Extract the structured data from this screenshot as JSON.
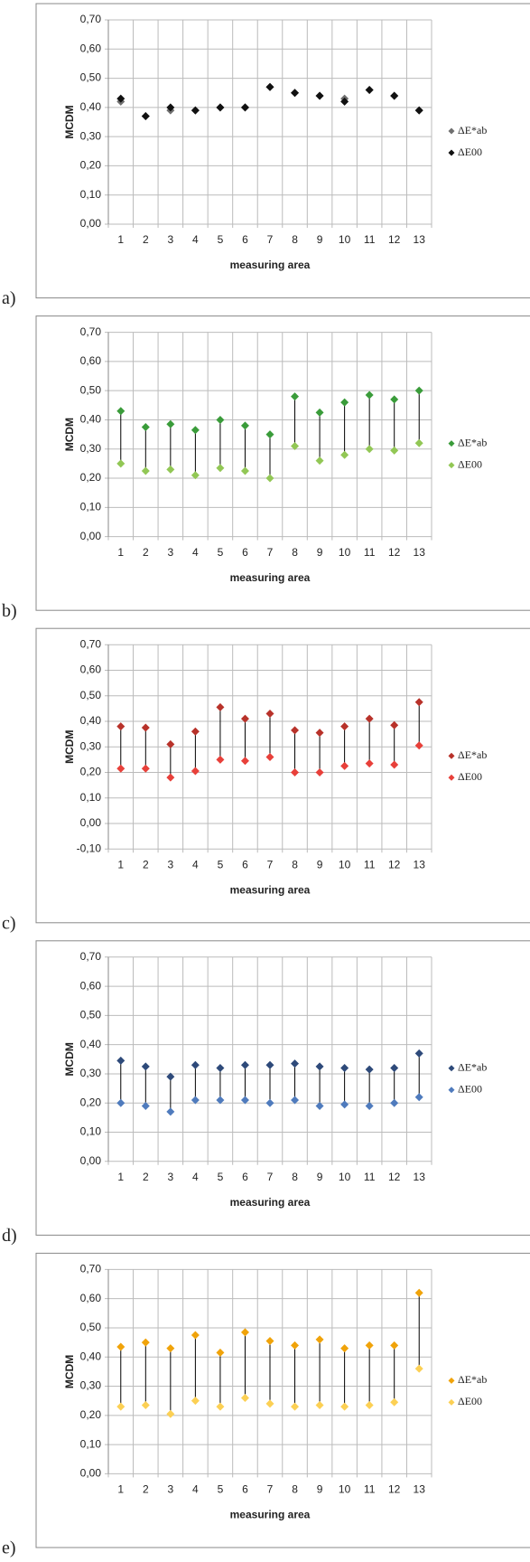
{
  "chart_data": [
    {
      "type": "dot",
      "label": "a)",
      "xlabel": "measuring area",
      "ylabel": "MCDM",
      "categories": [
        "1",
        "2",
        "3",
        "4",
        "5",
        "6",
        "7",
        "8",
        "9",
        "10",
        "11",
        "12",
        "13"
      ],
      "ylim": [
        0,
        0.7
      ],
      "yticks": [
        {
          "value": 0,
          "label": "0,00"
        },
        {
          "value": 0.1,
          "label": "0,10"
        },
        {
          "value": 0.2,
          "label": "0,20"
        },
        {
          "value": 0.3,
          "label": "0,30"
        },
        {
          "value": 0.4,
          "label": "0,40"
        },
        {
          "value": 0.5,
          "label": "0,50"
        },
        {
          "value": 0.6,
          "label": "0,60"
        },
        {
          "value": 0.7,
          "label": "0,70"
        }
      ],
      "grid": true,
      "series": [
        {
          "name": "ΔE*ab",
          "color": "#6f6f6f",
          "values": [
            0.42,
            0.37,
            0.39,
            0.39,
            0.4,
            0.4,
            0.47,
            0.45,
            0.44,
            0.43,
            0.46,
            0.44,
            0.39
          ]
        },
        {
          "name": "ΔE00",
          "color": "#111111",
          "values": [
            0.43,
            0.37,
            0.4,
            0.39,
            0.4,
            0.4,
            0.47,
            0.45,
            0.44,
            0.42,
            0.46,
            0.44,
            0.39
          ]
        }
      ]
    },
    {
      "type": "dot",
      "label": "b)",
      "xlabel": "measuring area",
      "ylabel": "MCDM",
      "categories": [
        "1",
        "2",
        "3",
        "4",
        "5",
        "6",
        "7",
        "8",
        "9",
        "10",
        "11",
        "12",
        "13"
      ],
      "ylim": [
        0,
        0.7
      ],
      "yticks": [
        {
          "value": 0,
          "label": "0,00"
        },
        {
          "value": 0.1,
          "label": "0,10"
        },
        {
          "value": 0.2,
          "label": "0,20"
        },
        {
          "value": 0.3,
          "label": "0,30"
        },
        {
          "value": 0.4,
          "label": "0,40"
        },
        {
          "value": 0.5,
          "label": "0,50"
        },
        {
          "value": 0.6,
          "label": "0,60"
        },
        {
          "value": 0.7,
          "label": "0,70"
        }
      ],
      "grid": true,
      "series": [
        {
          "name": "ΔE*ab",
          "color": "#3a9c3a",
          "values": [
            0.43,
            0.375,
            0.385,
            0.365,
            0.4,
            0.38,
            0.35,
            0.48,
            0.425,
            0.46,
            0.485,
            0.47,
            0.5
          ]
        },
        {
          "name": "ΔE00",
          "color": "#92c755",
          "values": [
            0.25,
            0.225,
            0.23,
            0.21,
            0.235,
            0.225,
            0.2,
            0.31,
            0.26,
            0.28,
            0.3,
            0.295,
            0.32
          ]
        }
      ]
    },
    {
      "type": "dot",
      "label": "c)",
      "xlabel": "measuring area",
      "ylabel": "MCDM",
      "categories": [
        "1",
        "2",
        "3",
        "4",
        "5",
        "6",
        "7",
        "8",
        "9",
        "10",
        "11",
        "12",
        "13"
      ],
      "ylim": [
        -0.1,
        0.7
      ],
      "yticks": [
        {
          "value": -0.1,
          "label": "-0,10"
        },
        {
          "value": 0,
          "label": "0,00"
        },
        {
          "value": 0.1,
          "label": "0,10"
        },
        {
          "value": 0.2,
          "label": "0,20"
        },
        {
          "value": 0.3,
          "label": "0,30"
        },
        {
          "value": 0.4,
          "label": "0,40"
        },
        {
          "value": 0.5,
          "label": "0,50"
        },
        {
          "value": 0.6,
          "label": "0,60"
        },
        {
          "value": 0.7,
          "label": "0,70"
        }
      ],
      "grid": true,
      "series": [
        {
          "name": "ΔE*ab",
          "color": "#b8322a",
          "values": [
            0.38,
            0.375,
            0.31,
            0.36,
            0.455,
            0.41,
            0.43,
            0.365,
            0.355,
            0.38,
            0.41,
            0.385,
            0.475
          ]
        },
        {
          "name": "ΔE00",
          "color": "#e8403a",
          "values": [
            0.215,
            0.215,
            0.18,
            0.205,
            0.25,
            0.245,
            0.26,
            0.2,
            0.2,
            0.225,
            0.235,
            0.23,
            0.305
          ]
        }
      ]
    },
    {
      "type": "dot",
      "label": "d)",
      "xlabel": "measuring area",
      "ylabel": "MCDM",
      "categories": [
        "1",
        "2",
        "3",
        "4",
        "5",
        "6",
        "7",
        "8",
        "9",
        "10",
        "11",
        "12",
        "13"
      ],
      "ylim": [
        0,
        0.7
      ],
      "yticks": [
        {
          "value": 0,
          "label": "0,00"
        },
        {
          "value": 0.1,
          "label": "0,10"
        },
        {
          "value": 0.2,
          "label": "0,20"
        },
        {
          "value": 0.3,
          "label": "0,30"
        },
        {
          "value": 0.4,
          "label": "0,40"
        },
        {
          "value": 0.5,
          "label": "0,50"
        },
        {
          "value": 0.6,
          "label": "0,60"
        },
        {
          "value": 0.7,
          "label": "0,70"
        }
      ],
      "grid": true,
      "series": [
        {
          "name": "ΔE*ab",
          "color": "#2e4a7a",
          "values": [
            0.345,
            0.325,
            0.29,
            0.33,
            0.32,
            0.33,
            0.33,
            0.335,
            0.325,
            0.32,
            0.315,
            0.32,
            0.37
          ]
        },
        {
          "name": "ΔE00",
          "color": "#4f7bbd",
          "values": [
            0.2,
            0.19,
            0.17,
            0.21,
            0.21,
            0.21,
            0.2,
            0.21,
            0.19,
            0.195,
            0.19,
            0.2,
            0.22
          ]
        }
      ]
    },
    {
      "type": "dot",
      "label": "e)",
      "xlabel": "measuring area",
      "ylabel": "MCDM",
      "categories": [
        "1",
        "2",
        "3",
        "4",
        "5",
        "6",
        "7",
        "8",
        "9",
        "10",
        "11",
        "12",
        "13"
      ],
      "ylim": [
        0,
        0.7
      ],
      "yticks": [
        {
          "value": 0,
          "label": "0,00"
        },
        {
          "value": 0.1,
          "label": "0,10"
        },
        {
          "value": 0.2,
          "label": "0,20"
        },
        {
          "value": 0.3,
          "label": "0,30"
        },
        {
          "value": 0.4,
          "label": "0,40"
        },
        {
          "value": 0.5,
          "label": "0,50"
        },
        {
          "value": 0.6,
          "label": "0,60"
        },
        {
          "value": 0.7,
          "label": "0,70"
        }
      ],
      "grid": true,
      "series": [
        {
          "name": "ΔE*ab",
          "color": "#f0a30a",
          "values": [
            0.435,
            0.45,
            0.43,
            0.475,
            0.415,
            0.485,
            0.455,
            0.44,
            0.46,
            0.43,
            0.44,
            0.44,
            0.62
          ]
        },
        {
          "name": "ΔE00",
          "color": "#fcd054",
          "values": [
            0.23,
            0.235,
            0.205,
            0.25,
            0.23,
            0.26,
            0.24,
            0.23,
            0.235,
            0.23,
            0.235,
            0.245,
            0.36
          ]
        }
      ]
    }
  ]
}
